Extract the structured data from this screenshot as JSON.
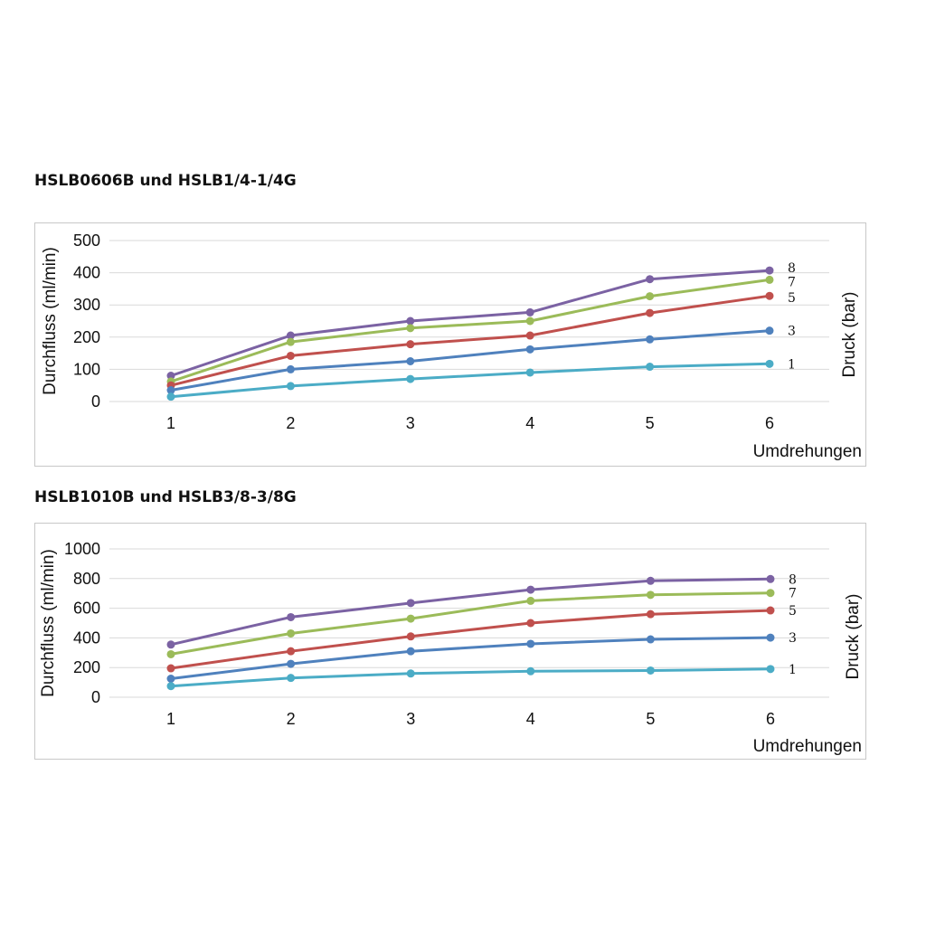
{
  "chart_data": [
    {
      "type": "line",
      "title": "HSLB0606B und HSLB1/4-1/4G",
      "xlabel": "Umdrehungen",
      "ylabel": "Durchfluss (ml/min)",
      "y2label": "Druck (bar)",
      "x": [
        1,
        2,
        3,
        4,
        5,
        6
      ],
      "ylim": [
        0,
        500
      ],
      "yticks": [
        0,
        100,
        200,
        300,
        400,
        500
      ],
      "grid": true,
      "series": [
        {
          "name": "8",
          "color": "#7b62a3",
          "values": [
            80,
            205,
            250,
            277,
            380,
            407
          ]
        },
        {
          "name": "7",
          "color": "#9bbb59",
          "values": [
            62,
            185,
            228,
            250,
            327,
            378
          ]
        },
        {
          "name": "5",
          "color": "#c0504d",
          "values": [
            50,
            142,
            178,
            205,
            275,
            328
          ]
        },
        {
          "name": "3",
          "color": "#4f81bd",
          "values": [
            35,
            100,
            125,
            162,
            193,
            220
          ]
        },
        {
          "name": "1",
          "color": "#4bacc6",
          "values": [
            15,
            48,
            70,
            90,
            108,
            117
          ]
        }
      ]
    },
    {
      "type": "line",
      "title": "HSLB1010B und HSLB3/8-3/8G",
      "xlabel": "Umdrehungen",
      "ylabel": "Durchfluss (ml/min)",
      "y2label": "Druck (bar)",
      "x": [
        1,
        2,
        3,
        4,
        5,
        6
      ],
      "ylim": [
        0,
        1000
      ],
      "yticks": [
        0,
        200,
        400,
        600,
        800,
        1000
      ],
      "grid": true,
      "series": [
        {
          "name": "8",
          "color": "#7b62a3",
          "values": [
            355,
            540,
            635,
            725,
            785,
            797
          ]
        },
        {
          "name": "7",
          "color": "#9bbb59",
          "values": [
            290,
            430,
            530,
            650,
            690,
            703
          ]
        },
        {
          "name": "5",
          "color": "#c0504d",
          "values": [
            195,
            310,
            410,
            500,
            560,
            585
          ]
        },
        {
          "name": "3",
          "color": "#4f81bd",
          "values": [
            125,
            225,
            310,
            360,
            390,
            402
          ]
        },
        {
          "name": "1",
          "color": "#4bacc6",
          "values": [
            75,
            130,
            160,
            175,
            180,
            190
          ]
        }
      ]
    }
  ]
}
